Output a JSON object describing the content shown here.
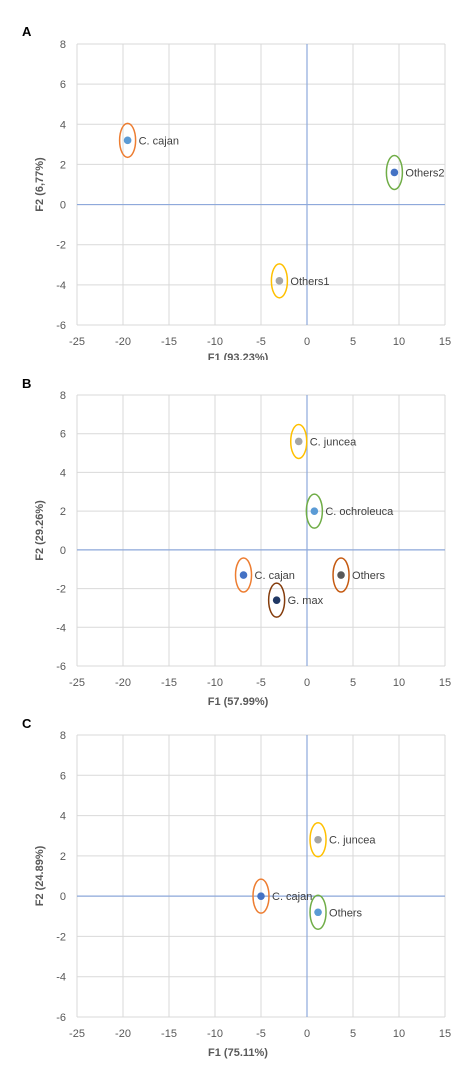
{
  "chart_data": [
    {
      "panel": "A",
      "type": "scatter",
      "xlabel": "F1 (93,23%)",
      "ylabel": "F2 (6,77%)",
      "xlim": [
        -25,
        15
      ],
      "ylim": [
        -6,
        8
      ],
      "x_ticks": [
        -25,
        -20,
        -15,
        -10,
        -5,
        0,
        5,
        10,
        15
      ],
      "y_ticks": [
        -6,
        -4,
        -2,
        0,
        2,
        4,
        6,
        8
      ],
      "grid": true,
      "points": [
        {
          "label": "C. cajan",
          "x": -19.5,
          "y": 3.2,
          "color": "#5B9BD5",
          "ring": "#ED7D31"
        },
        {
          "label": "Others2",
          "x": 9.5,
          "y": 1.6,
          "color": "#4472C4",
          "ring": "#70AD47"
        },
        {
          "label": "Others1",
          "x": -3.0,
          "y": -3.8,
          "color": "#A5A5A5",
          "ring": "#FFC000"
        }
      ]
    },
    {
      "panel": "B",
      "type": "scatter",
      "xlabel": "F1 (57.99%)",
      "ylabel": "F2 (29.26%)",
      "xlim": [
        -25,
        15
      ],
      "ylim": [
        -6,
        8
      ],
      "x_ticks": [
        -25,
        -20,
        -15,
        -10,
        -5,
        0,
        5,
        10,
        15
      ],
      "y_ticks": [
        -6,
        -4,
        -2,
        0,
        2,
        4,
        6,
        8
      ],
      "grid": true,
      "points": [
        {
          "label": "C. juncea",
          "x": -0.9,
          "y": 5.6,
          "color": "#A5A5A5",
          "ring": "#FFC000"
        },
        {
          "label": "C. ochroleuca",
          "x": 0.8,
          "y": 2.0,
          "color": "#5B9BD5",
          "ring": "#70AD47"
        },
        {
          "label": "C. cajan",
          "x": -6.9,
          "y": -1.3,
          "color": "#4472C4",
          "ring": "#ED7D31"
        },
        {
          "label": "Others",
          "x": 3.7,
          "y": -1.3,
          "color": "#595959",
          "ring": "#C55A11"
        },
        {
          "label": "G. max",
          "x": -3.3,
          "y": -2.6,
          "color": "#203864",
          "ring": "#843C0C"
        }
      ]
    },
    {
      "panel": "C",
      "type": "scatter",
      "xlabel": "F1 (75.11%)",
      "ylabel": "F2 (24.89%)",
      "xlim": [
        -25,
        15
      ],
      "ylim": [
        -6,
        8
      ],
      "x_ticks": [
        -25,
        -20,
        -15,
        -10,
        -5,
        0,
        5,
        10,
        15
      ],
      "y_ticks": [
        -6,
        -4,
        -2,
        0,
        2,
        4,
        6,
        8
      ],
      "grid": true,
      "points": [
        {
          "label": "C. juncea",
          "x": 1.2,
          "y": 2.8,
          "color": "#A5A5A5",
          "ring": "#FFC000"
        },
        {
          "label": "C. cajan",
          "x": -5.0,
          "y": 0.0,
          "color": "#4472C4",
          "ring": "#ED7D31"
        },
        {
          "label": "Others",
          "x": 1.2,
          "y": -0.8,
          "color": "#5B9BD5",
          "ring": "#70AD47"
        }
      ]
    }
  ]
}
